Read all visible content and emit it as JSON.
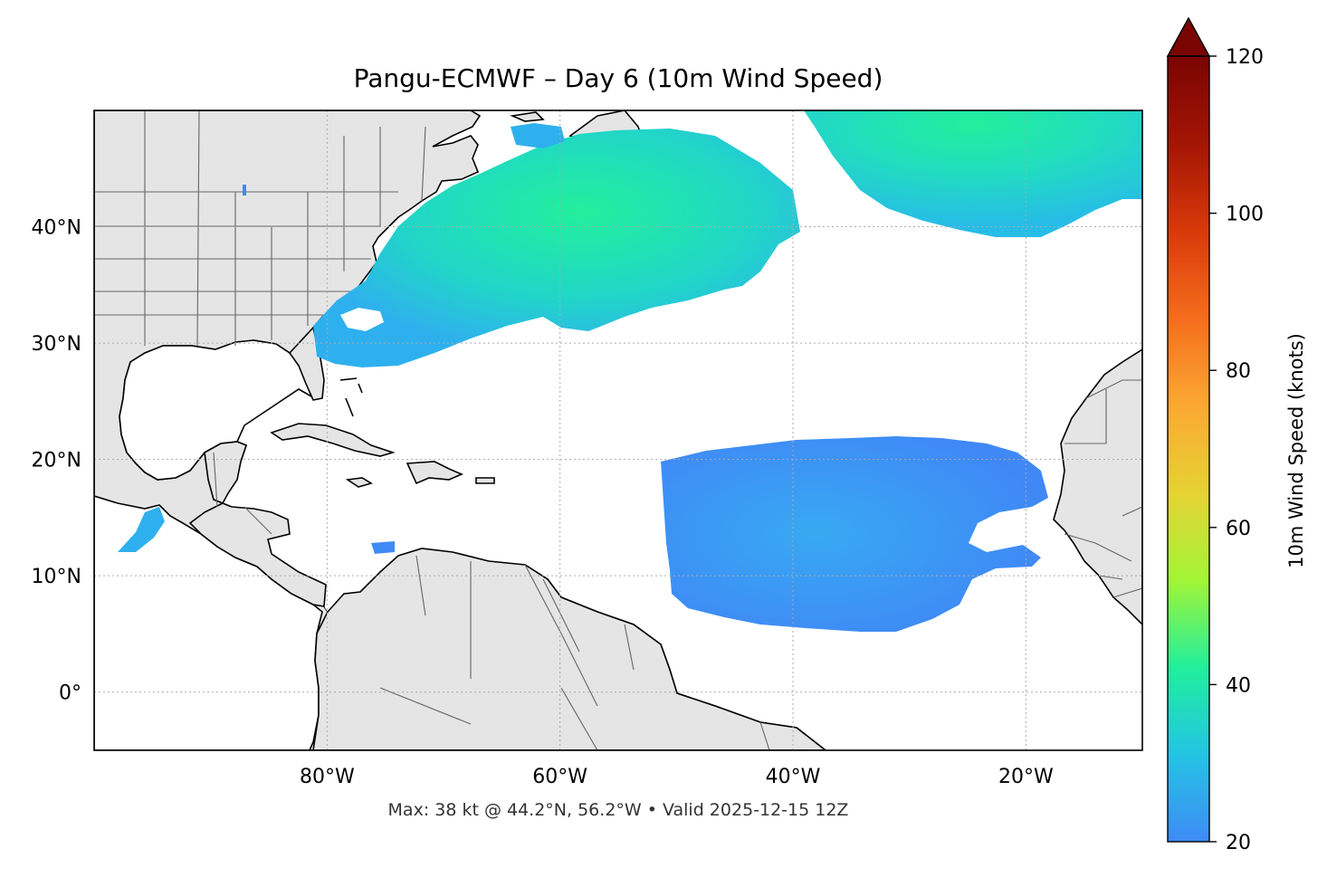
{
  "title": "Pangu-ECMWF – Day 6 (10m Wind Speed)",
  "footer": "Max: 38 kt @ 44.2°N, 56.2°W • Valid 2025-12-15 12Z",
  "map": {
    "lon_range": [
      -100,
      -10
    ],
    "lat_range": [
      -5,
      50
    ],
    "lon_ticks": [
      {
        "value": -80,
        "label": "80°W"
      },
      {
        "value": -60,
        "label": "60°W"
      },
      {
        "value": -40,
        "label": "40°W"
      },
      {
        "value": -20,
        "label": "20°W"
      }
    ],
    "lat_ticks": [
      {
        "value": 0,
        "label": "0°"
      },
      {
        "value": 10,
        "label": "10°N"
      },
      {
        "value": 20,
        "label": "20°N"
      },
      {
        "value": 30,
        "label": "30°N"
      },
      {
        "value": 40,
        "label": "40°N"
      }
    ],
    "land_color": "#e5e5e5",
    "grid": true
  },
  "colorbar": {
    "label": "10m Wind Speed (knots)",
    "min": 20,
    "max": 120,
    "ticks": [
      20,
      40,
      60,
      80,
      100,
      120
    ],
    "extend": "max",
    "colormap": "turbo",
    "colors": [
      "#3f8bf6",
      "#23c4e3",
      "#22ef9c",
      "#a3f536",
      "#e6d233",
      "#fba833",
      "#f56d1c",
      "#d8390a",
      "#a31504",
      "#7a0402"
    ]
  }
}
